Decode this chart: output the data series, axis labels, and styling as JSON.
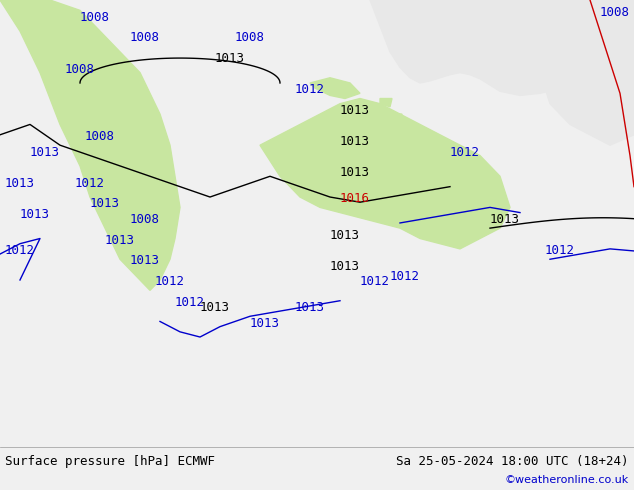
{
  "title_left": "Surface pressure [hPa] ECMWF",
  "title_right": "Sa 25-05-2024 18:00 UTC (18+24)",
  "credit": "©weatheronline.co.uk",
  "bg_color": "#f0f0f0",
  "land_color_green": "#c8e6a0",
  "land_color_light": "#e8e8e8",
  "contour_blue": "#0000cc",
  "contour_black": "#000000",
  "contour_red": "#cc0000",
  "label_fontsize": 9,
  "bottom_bar_color": "#e8e8e8",
  "title_fontsize": 9
}
